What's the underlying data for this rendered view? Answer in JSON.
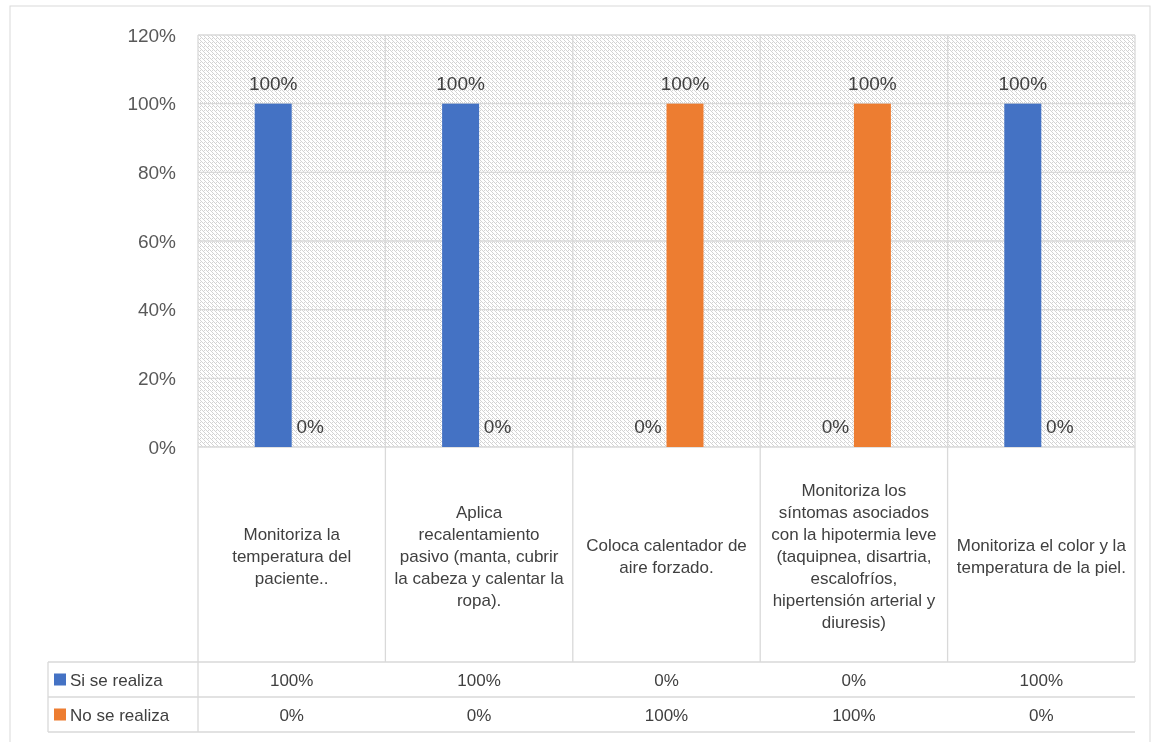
{
  "chart_data": {
    "type": "bar",
    "categories": [
      "Monitoriza la temperatura del paciente..",
      "Aplica recalentamiento pasivo  (manta, cubrir la cabeza y calentar la ropa).",
      "Coloca calentador de aire forzado.",
      "Monitoriza los síntomas asociados con la hipotermia leve (taquipnea, disartria, escalofríos, hipertensión arterial y diuresis)",
      "Monitoriza el color y la temperatura de la piel."
    ],
    "series": [
      {
        "name": "Si se realiza",
        "color": "#4472c4",
        "values": [
          100,
          100,
          0,
          0,
          100
        ],
        "value_labels": [
          "100%",
          "100%",
          "0%",
          "0%",
          "100%"
        ]
      },
      {
        "name": "No se realiza",
        "color": "#ed7d31",
        "values": [
          0,
          0,
          100,
          100,
          0
        ],
        "value_labels": [
          "0%",
          "0%",
          "100%",
          "100%",
          "0%"
        ]
      }
    ],
    "ylim": [
      0,
      120
    ],
    "yticks": [
      {
        "value": 0,
        "label": "0%"
      },
      {
        "value": 20,
        "label": "20%"
      },
      {
        "value": 40,
        "label": "40%"
      },
      {
        "value": 60,
        "label": "60%"
      },
      {
        "value": 80,
        "label": "80%"
      },
      {
        "value": 100,
        "label": "100%"
      },
      {
        "value": 120,
        "label": "120%"
      }
    ],
    "grid": true,
    "legend": "bottom"
  }
}
